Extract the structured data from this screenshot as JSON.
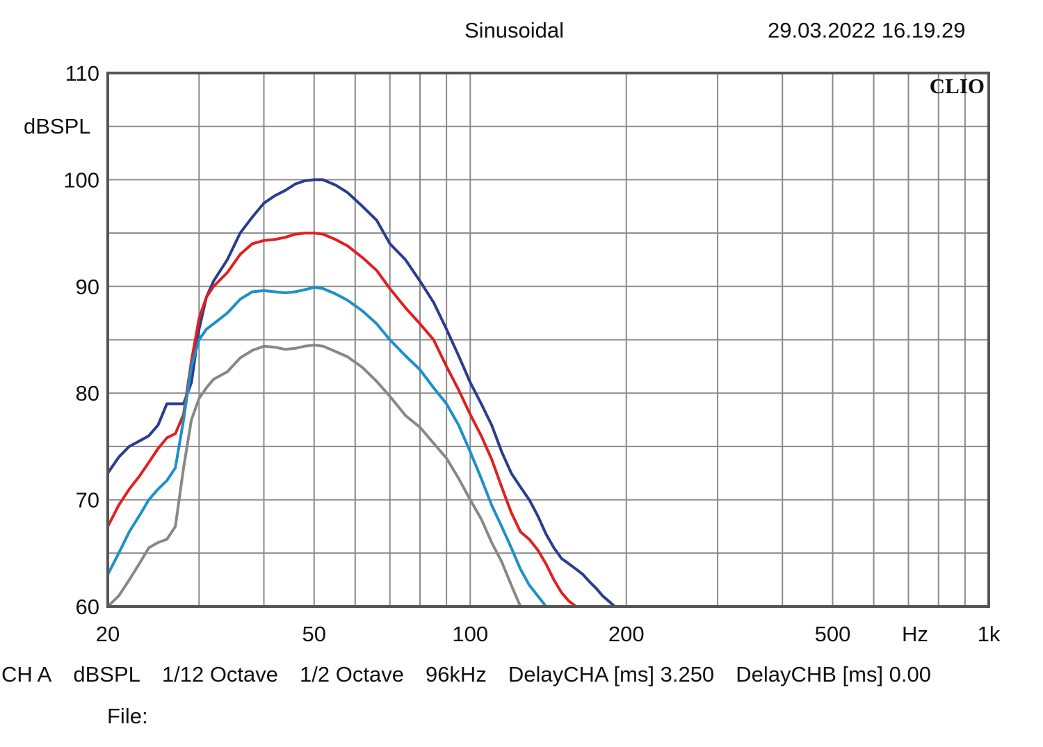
{
  "title": "Sinusoidal",
  "timestamp": "29.03.2022 16.19.29",
  "logo_text": "CLIO",
  "footer": {
    "channel": "CH A",
    "unit": "dBSPL",
    "smoothing": "1/12 Octave",
    "octave": "1/2 Octave",
    "sample_rate": "96kHz",
    "delay_cha": "DelayCHA [ms] 3.250",
    "delay_chb": "DelayCHB [ms] 0.00",
    "file_label": "File:"
  },
  "chart_data": {
    "type": "line",
    "title": "Sinusoidal",
    "xlabel": "Hz",
    "ylabel": "dBSPL",
    "x_scale": "log",
    "xlim": [
      20,
      1000
    ],
    "ylim": [
      60,
      110
    ],
    "grid": true,
    "x_ticks": [
      {
        "value": 20,
        "label": "20"
      },
      {
        "value": 50,
        "label": "50"
      },
      {
        "value": 100,
        "label": "100"
      },
      {
        "value": 200,
        "label": "200"
      },
      {
        "value": 500,
        "label": "500"
      },
      {
        "value": 1000,
        "label": "1k"
      }
    ],
    "x_gridlines": [
      20,
      30,
      40,
      50,
      60,
      70,
      80,
      90,
      100,
      200,
      300,
      400,
      500,
      600,
      700,
      800,
      900,
      1000
    ],
    "y_ticks": [
      {
        "value": 60,
        "label": "60"
      },
      {
        "value": 70,
        "label": "70"
      },
      {
        "value": 80,
        "label": "80"
      },
      {
        "value": 90,
        "label": "90"
      },
      {
        "value": 100,
        "label": "100"
      },
      {
        "value": 110,
        "label": "110"
      }
    ],
    "y_gridlines": [
      60,
      65,
      70,
      75,
      80,
      85,
      90,
      95,
      100,
      105,
      110
    ],
    "series": [
      {
        "color": "#2a3d8f",
        "x": [
          20,
          21,
          22,
          23,
          24,
          25,
          26,
          27,
          28,
          29,
          30,
          31,
          32,
          34,
          36,
          38,
          40,
          42,
          44,
          46,
          48,
          50,
          52,
          55,
          58,
          62,
          66,
          70,
          75,
          80,
          85,
          90,
          95,
          100,
          105,
          110,
          115,
          120,
          125,
          130,
          135,
          140,
          145,
          150,
          155,
          160,
          165,
          170,
          175,
          180,
          185,
          190
        ],
        "y": [
          72.5,
          74,
          75,
          75.5,
          76,
          77,
          79,
          79,
          79,
          81,
          86,
          89,
          90.5,
          92.5,
          95,
          96.5,
          97.8,
          98.5,
          99,
          99.6,
          99.9,
          100,
          100,
          99.5,
          98.8,
          97.5,
          96.2,
          94,
          92.5,
          90.5,
          88.5,
          86,
          83.5,
          81,
          79,
          77,
          74.5,
          72.5,
          71.2,
          70,
          68.5,
          66.8,
          65.5,
          64.5,
          64,
          63.5,
          63,
          62.3,
          61.7,
          61,
          60.5,
          60
        ]
      },
      {
        "color": "#e02020",
        "x": [
          20,
          21,
          22,
          23,
          24,
          25,
          26,
          27,
          28,
          29,
          30,
          31,
          32,
          34,
          36,
          38,
          40,
          42,
          44,
          46,
          48,
          50,
          52,
          55,
          58,
          62,
          66,
          70,
          75,
          80,
          85,
          90,
          95,
          100,
          105,
          110,
          115,
          120,
          125,
          130,
          135,
          140,
          145,
          150,
          155,
          160
        ],
        "y": [
          67.5,
          69.5,
          71,
          72.2,
          73.5,
          74.8,
          75.8,
          76.2,
          78,
          83,
          87,
          89,
          90,
          91.3,
          93,
          94,
          94.3,
          94.4,
          94.6,
          94.9,
          95,
          95,
          94.9,
          94.4,
          93.8,
          92.7,
          91.5,
          89.8,
          88,
          86.5,
          85,
          82.5,
          80.3,
          78,
          76,
          73.8,
          71.2,
          68.8,
          67,
          66.3,
          65.3,
          64,
          62.5,
          61.3,
          60.5,
          60
        ]
      },
      {
        "color": "#1e90c8",
        "x": [
          20,
          21,
          22,
          23,
          24,
          25,
          26,
          27,
          28,
          29,
          30,
          31,
          32,
          34,
          36,
          38,
          40,
          42,
          44,
          46,
          48,
          50,
          52,
          55,
          58,
          62,
          66,
          70,
          75,
          80,
          85,
          90,
          95,
          100,
          105,
          110,
          115,
          120,
          125,
          130,
          135,
          140
        ],
        "y": [
          63,
          65,
          67,
          68.5,
          70,
          71,
          71.8,
          73,
          77.5,
          82.5,
          85,
          86,
          86.5,
          87.5,
          88.8,
          89.5,
          89.6,
          89.5,
          89.4,
          89.5,
          89.7,
          89.9,
          89.8,
          89.3,
          88.7,
          87.7,
          86.5,
          85,
          83.5,
          82.2,
          80.5,
          79,
          77,
          74.5,
          72,
          69.5,
          67.5,
          65.5,
          63.5,
          62,
          61,
          60
        ]
      },
      {
        "color": "#888888",
        "x": [
          20,
          21,
          22,
          23,
          24,
          25,
          26,
          27,
          28,
          29,
          30,
          31,
          32,
          34,
          36,
          38,
          40,
          42,
          44,
          46,
          48,
          50,
          52,
          55,
          58,
          62,
          66,
          70,
          75,
          80,
          85,
          90,
          95,
          100,
          105,
          110,
          115,
          120,
          125
        ],
        "y": [
          60,
          61,
          62.5,
          64,
          65.5,
          66,
          66.3,
          67.5,
          73,
          77.5,
          79.5,
          80.5,
          81.3,
          82,
          83.3,
          84,
          84.4,
          84.3,
          84.1,
          84.2,
          84.4,
          84.5,
          84.4,
          83.9,
          83.4,
          82.4,
          81.1,
          79.7,
          77.9,
          76.8,
          75.3,
          73.9,
          72,
          70,
          68.2,
          66,
          64.2,
          62,
          60
        ]
      }
    ]
  }
}
